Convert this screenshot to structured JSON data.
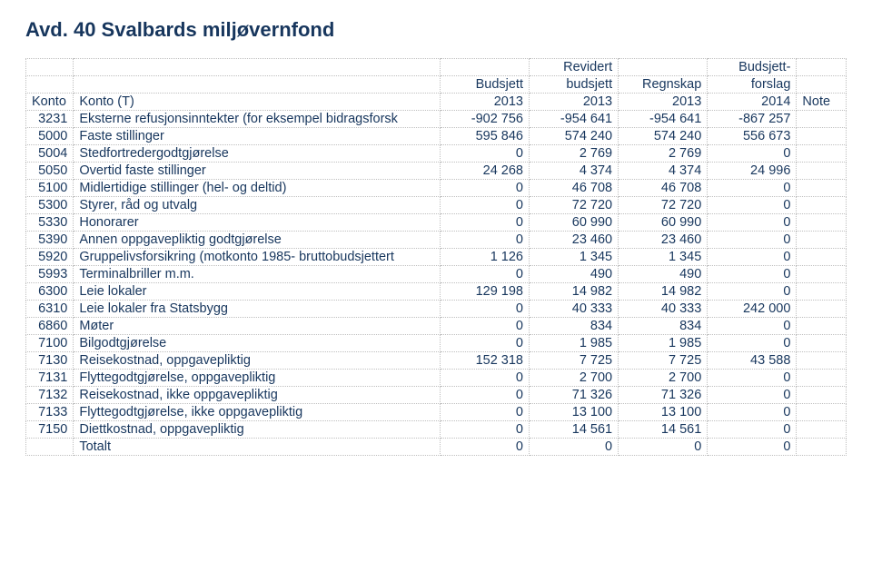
{
  "title": "Avd. 40 Svalbards miljøvernfond",
  "header": {
    "row1": [
      "",
      "",
      "",
      "Revidert",
      "",
      "Budsjett-",
      ""
    ],
    "row2": [
      "",
      "",
      "Budsjett",
      "budsjett",
      "Regnskap",
      "forslag",
      ""
    ],
    "row3": [
      "Konto",
      "Konto (T)",
      "2013",
      "2013",
      "2013",
      "2014",
      "Note"
    ]
  },
  "rows": [
    {
      "k": "3231",
      "t": "Eksterne refusjonsinntekter (for eksempel bidragsforsk",
      "a": "-902 756",
      "b": "-954 641",
      "c": "-954 641",
      "d": "-867 257",
      "n": ""
    },
    {
      "k": "5000",
      "t": "Faste stillinger",
      "a": "595 846",
      "b": "574 240",
      "c": "574 240",
      "d": "556 673",
      "n": ""
    },
    {
      "k": "5004",
      "t": "Stedfortredergodtgjørelse",
      "a": "0",
      "b": "2 769",
      "c": "2 769",
      "d": "0",
      "n": ""
    },
    {
      "k": "5050",
      "t": "Overtid faste stillinger",
      "a": "24 268",
      "b": "4 374",
      "c": "4 374",
      "d": "24 996",
      "n": ""
    },
    {
      "k": "5100",
      "t": "Midlertidige stillinger (hel- og deltid)",
      "a": "0",
      "b": "46 708",
      "c": "46 708",
      "d": "0",
      "n": ""
    },
    {
      "k": "5300",
      "t": "Styrer, råd og utvalg",
      "a": "0",
      "b": "72 720",
      "c": "72 720",
      "d": "0",
      "n": ""
    },
    {
      "k": "5330",
      "t": "Honorarer",
      "a": "0",
      "b": "60 990",
      "c": "60 990",
      "d": "0",
      "n": ""
    },
    {
      "k": "5390",
      "t": "Annen oppgavepliktig godtgjørelse",
      "a": "0",
      "b": "23 460",
      "c": "23 460",
      "d": "0",
      "n": ""
    },
    {
      "k": "5920",
      "t": "Gruppelivsforsikring (motkonto 1985- bruttobudsjettert",
      "a": "1 126",
      "b": "1 345",
      "c": "1 345",
      "d": "0",
      "n": ""
    },
    {
      "k": "5993",
      "t": "Terminalbriller m.m.",
      "a": "0",
      "b": "490",
      "c": "490",
      "d": "0",
      "n": ""
    },
    {
      "k": "6300",
      "t": "Leie lokaler",
      "a": "129 198",
      "b": "14 982",
      "c": "14 982",
      "d": "0",
      "n": ""
    },
    {
      "k": "6310",
      "t": "Leie lokaler fra Statsbygg",
      "a": "0",
      "b": "40 333",
      "c": "40 333",
      "d": "242 000",
      "n": ""
    },
    {
      "k": "6860",
      "t": "Møter",
      "a": "0",
      "b": "834",
      "c": "834",
      "d": "0",
      "n": ""
    },
    {
      "k": "7100",
      "t": "Bilgodtgjørelse",
      "a": "0",
      "b": "1 985",
      "c": "1 985",
      "d": "0",
      "n": ""
    },
    {
      "k": "7130",
      "t": "Reisekostnad, oppgavepliktig",
      "a": "152 318",
      "b": "7 725",
      "c": "7 725",
      "d": "43 588",
      "n": ""
    },
    {
      "k": "7131",
      "t": "Flyttegodtgjørelse, oppgavepliktig",
      "a": "0",
      "b": "2 700",
      "c": "2 700",
      "d": "0",
      "n": ""
    },
    {
      "k": "7132",
      "t": "Reisekostnad, ikke oppgavepliktig",
      "a": "0",
      "b": "71 326",
      "c": "71 326",
      "d": "0",
      "n": ""
    },
    {
      "k": "7133",
      "t": "Flyttegodtgjørelse, ikke oppgavepliktig",
      "a": "0",
      "b": "13 100",
      "c": "13 100",
      "d": "0",
      "n": ""
    },
    {
      "k": "7150",
      "t": "Diettkostnad, oppgavepliktig",
      "a": "0",
      "b": "14 561",
      "c": "14 561",
      "d": "0",
      "n": ""
    }
  ],
  "total": {
    "label": "Totalt",
    "a": "0",
    "b": "0",
    "c": "0",
    "d": "0"
  },
  "colors": {
    "text": "#17365d",
    "border": "#bfbfbf",
    "background": "#ffffff"
  }
}
